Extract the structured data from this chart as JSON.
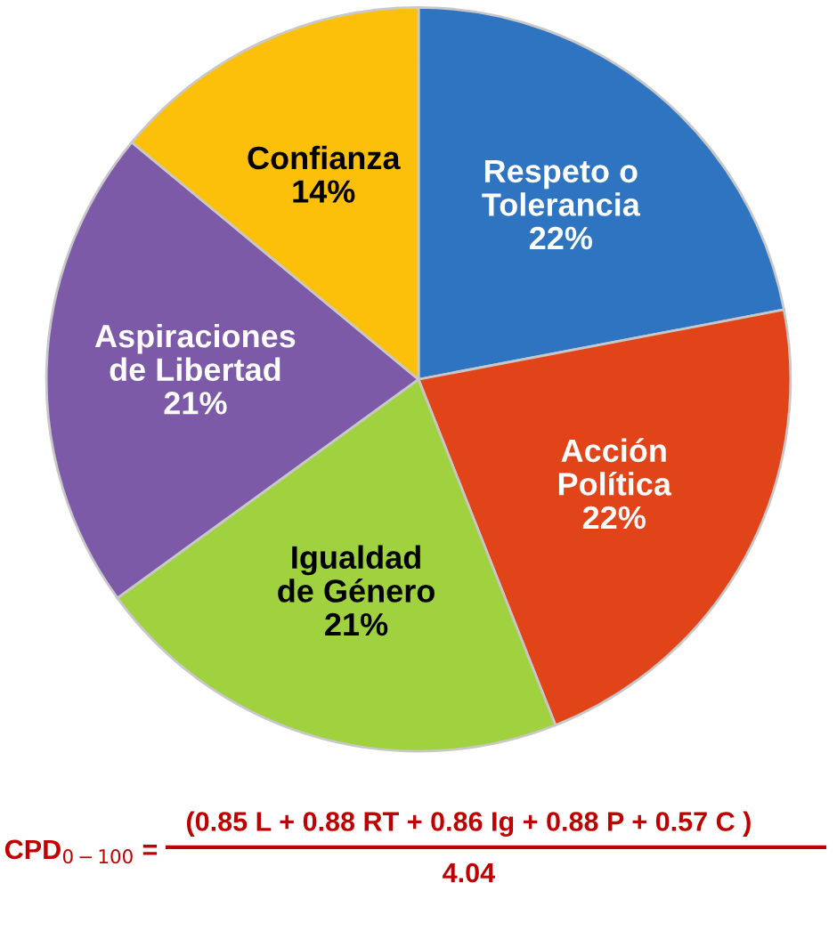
{
  "chart_data": {
    "type": "pie",
    "categories": [
      "Respeto o\nTolerancia",
      "Acción\nPolítica",
      "Igualdad\nde Género",
      "Aspiraciones\nde Libertad",
      "Confianza"
    ],
    "values": [
      22,
      22,
      21,
      21,
      14
    ],
    "value_labels": [
      "22%",
      "22%",
      "21%",
      "21%",
      "14%"
    ],
    "colors": [
      "#2f74c0",
      "#e2441a",
      "#9fd23e",
      "#7c5aa8",
      "#fdc00a"
    ],
    "legend": false,
    "annotations": [
      "CPD$_{0−100}$ =",
      "(0.85 L + 0.88 RT + 0.86 Ig + 0.88 P + 0.57 C )",
      "4.04"
    ]
  }
}
